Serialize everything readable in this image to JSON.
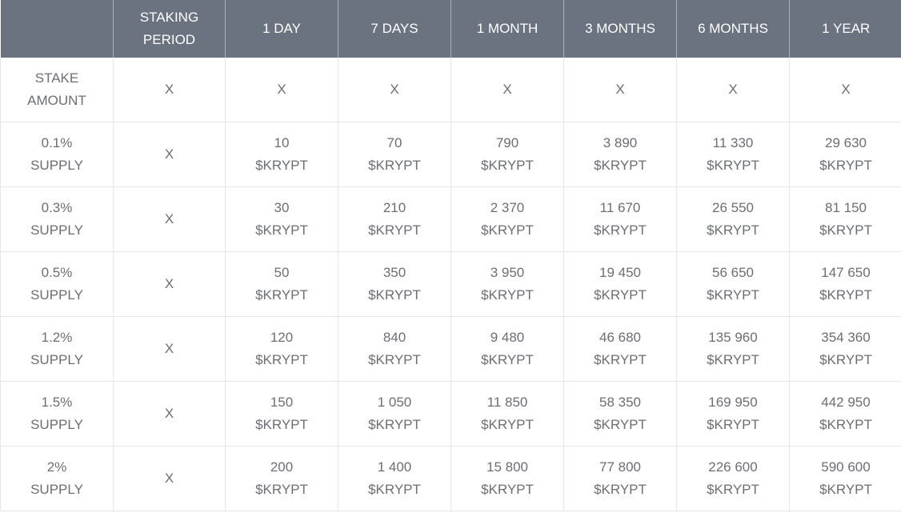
{
  "header": {
    "corner": "",
    "period_label": [
      "STAKING",
      "PERIOD"
    ],
    "periods": [
      "1 DAY",
      "7 DAYS",
      "1 MONTH",
      "3 MONTHS",
      "6 MONTHS",
      "1 YEAR"
    ]
  },
  "stake_amount_row": {
    "label": [
      "STAKE",
      "AMOUNT"
    ],
    "cells": [
      "X",
      "X",
      "X",
      "X",
      "X",
      "X",
      "X"
    ]
  },
  "rows": [
    {
      "supply": "0.1%",
      "supply_suffix": "SUPPLY",
      "marker": "X",
      "values": [
        "10",
        "70",
        "790",
        "3 890",
        "11 330",
        "29 630"
      ]
    },
    {
      "supply": "0.3%",
      "supply_suffix": "SUPPLY",
      "marker": "X",
      "values": [
        "30",
        "210",
        "2 370",
        "11 670",
        "26 550",
        "81 150"
      ]
    },
    {
      "supply": "0.5%",
      "supply_suffix": "SUPPLY",
      "marker": "X",
      "values": [
        "50",
        "350",
        "3 950",
        "19 450",
        "56 650",
        "147 650"
      ]
    },
    {
      "supply": "1.2%",
      "supply_suffix": "SUPPLY",
      "marker": "X",
      "values": [
        "120",
        "840",
        "9 480",
        "46 680",
        "135 960",
        "354 360"
      ]
    },
    {
      "supply": "1.5%",
      "supply_suffix": "SUPPLY",
      "marker": "X",
      "values": [
        "150",
        "1 050",
        "11 850",
        "58 350",
        "169 950",
        "442 950"
      ]
    },
    {
      "supply": "2%",
      "supply_suffix": "SUPPLY",
      "marker": "X",
      "values": [
        "200",
        "1 400",
        "15 800",
        "77 800",
        "226 600",
        "590 600"
      ]
    }
  ],
  "token": "$KRYPT",
  "colors": {
    "header_bg": "#6b7280",
    "header_text": "#ffffff",
    "body_text": "#6b6e74",
    "grid_line": "#e6e6e6"
  }
}
